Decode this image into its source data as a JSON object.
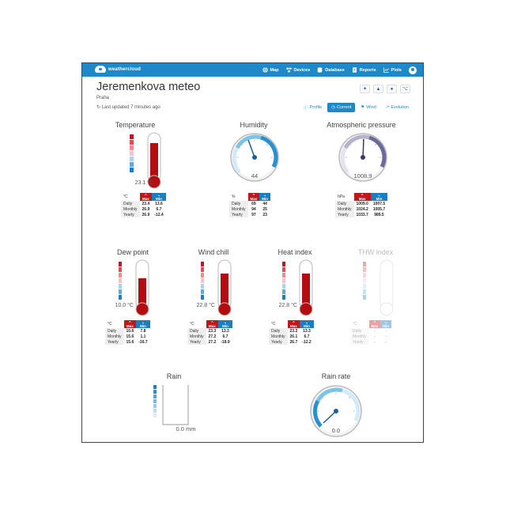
{
  "nav": {
    "brand": "weathercloud",
    "items": [
      "Map",
      "Devices",
      "Database",
      "Reports",
      "Plots"
    ]
  },
  "station": {
    "name": "Jeremenkova meteo",
    "location": "Praha",
    "updated": "Last updated 7 minutes ago"
  },
  "tabs": [
    "Profile",
    "Current",
    "Wind",
    "Evolution"
  ],
  "table_labels": {
    "max": "Max",
    "min": "Min",
    "daily": "Daily",
    "monthly": "Monthly",
    "yearly": "Yearly"
  },
  "temperature": {
    "title": "Temperature",
    "value": "23.1 °C",
    "unit": "°C",
    "daily": [
      "23.4",
      "13.6"
    ],
    "monthly": [
      "26.9",
      "6.7"
    ],
    "yearly": [
      "26.9",
      "-12.4"
    ]
  },
  "humidity": {
    "title": "Humidity",
    "value": "44",
    "unit": "%",
    "daily": [
      "69",
      "44"
    ],
    "monthly": [
      "94",
      "25"
    ],
    "yearly": [
      "97",
      "23"
    ]
  },
  "pressure": {
    "title": "Atmospheric pressure",
    "value": "1008.9",
    "unit": "hPa",
    "daily": [
      "1009.0",
      "1007.5"
    ],
    "monthly": [
      "1024.2",
      "1005.7"
    ],
    "yearly": [
      "1033.7",
      "989.5"
    ]
  },
  "dewpoint": {
    "title": "Dew point",
    "value": "10.0 °C",
    "unit": "°C",
    "daily": [
      "10.6",
      "7.8"
    ],
    "monthly": [
      "15.6",
      "1.1"
    ],
    "yearly": [
      "15.6",
      "-16.7"
    ]
  },
  "windchill": {
    "title": "Wind chill",
    "value": "22.8 °C",
    "unit": "°C",
    "daily": [
      "23.3",
      "13.3"
    ],
    "monthly": [
      "27.2",
      "6.7"
    ],
    "yearly": [
      "27.2",
      "-18.9"
    ]
  },
  "heatindex": {
    "title": "Heat index",
    "value": "22.8 °C",
    "unit": "°C",
    "daily": [
      "23.3",
      "13.3"
    ],
    "monthly": [
      "26.1",
      "6.7"
    ],
    "yearly": [
      "26.7",
      "-12.2"
    ]
  },
  "thw": {
    "title": "THW index",
    "unit": "°C",
    "daily": [
      "-",
      "-"
    ],
    "monthly": [
      "-",
      "-"
    ],
    "yearly": [
      "-",
      "-"
    ]
  },
  "rain": {
    "title": "Rain",
    "value": "0.0   mm"
  },
  "rainrate": {
    "title": "Rain rate",
    "value": "0.0"
  }
}
